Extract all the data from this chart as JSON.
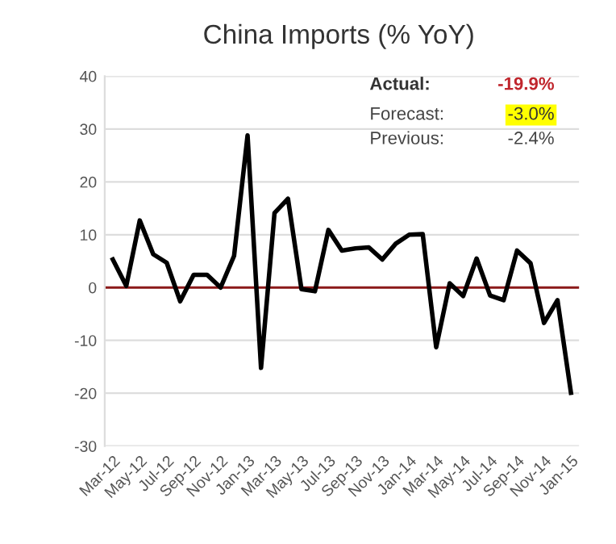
{
  "chart_data": {
    "type": "line",
    "title": "China Imports (% YoY)",
    "categories": [
      "Mar-12",
      null,
      "May-12",
      null,
      "Jul-12",
      null,
      "Sep-12",
      null,
      "Nov-12",
      null,
      "Jan-13",
      null,
      "Mar-13",
      null,
      "May-13",
      null,
      "Jul-13",
      null,
      "Sep-13",
      null,
      "Nov-13",
      null,
      "Jan-14",
      null,
      "Mar-14",
      null,
      "May-14",
      null,
      "Jul-14",
      null,
      "Sep-14",
      null,
      "Nov-14",
      null,
      "Jan-15"
    ],
    "series": [
      {
        "color": "#000000",
        "values": [
          5.3,
          0.3,
          12.7,
          6.3,
          4.7,
          -2.6,
          2.4,
          2.4,
          0,
          6,
          28.8,
          -15.2,
          14.1,
          16.8,
          -0.3,
          -0.7,
          10.9,
          7.0,
          7.4,
          7.6,
          5.3,
          8.3,
          10.0,
          10.1,
          -11.3,
          0.8,
          -1.6,
          5.5,
          -1.5,
          -2.4,
          7.0,
          4.6,
          -6.7,
          -2.4,
          -19.9
        ]
      }
    ],
    "ylim": [
      -30,
      40
    ],
    "yticks": [
      -30,
      -20,
      -10,
      0,
      10,
      20,
      30,
      40
    ],
    "grid": "y",
    "legend": false,
    "marker": "none",
    "line_style": "solid",
    "ref_lines": [
      {
        "axis": "y",
        "value": 0,
        "color": "#8b1a1a"
      }
    ],
    "annotations": [
      "Actual:",
      "-19.9%",
      "Forecast:",
      "-3.0%",
      "Previous:",
      "-2.4%"
    ]
  }
}
